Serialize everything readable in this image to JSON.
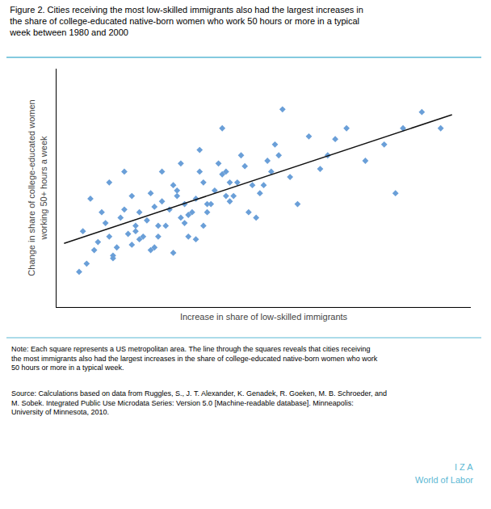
{
  "chart_data": {
    "type": "scatter",
    "title": "Figure 2. Cities receiving the most low-skilled immigrants also had the largest increases in\nthe share of college-educated native-born women who work 50 hours or more in a typical\nweek between 1980 and 2000",
    "xlabel": "Increase in share of low-skilled immigrants",
    "ylabel": "Change in share of college-educated women\nworking 50+ hours a week",
    "series": [
      {
        "type": "scatter",
        "marker": "diamond",
        "color": "#6a9fd8",
        "x": [
          0.005,
          0.008,
          0.01,
          0.012,
          0.006,
          0.009,
          0.007,
          0.011,
          0.013,
          0.004,
          0.015,
          0.017,
          0.014,
          0.016,
          0.019,
          0.018,
          0.02,
          0.013,
          0.012,
          0.016,
          0.022,
          0.024,
          0.021,
          0.023,
          0.025,
          0.02,
          0.018,
          0.026,
          0.019,
          0.023,
          0.028,
          0.03,
          0.027,
          0.029,
          0.031,
          0.025,
          0.032,
          0.026,
          0.024,
          0.033,
          0.035,
          0.037,
          0.034,
          0.036,
          0.038,
          0.032,
          0.033,
          0.03,
          0.029,
          0.031,
          0.04,
          0.042,
          0.039,
          0.041,
          0.043,
          0.038,
          0.037,
          0.044,
          0.035,
          0.036,
          0.046,
          0.048,
          0.045,
          0.047,
          0.05,
          0.044,
          0.049,
          0.043,
          0.042,
          0.051,
          0.055,
          0.057,
          0.053,
          0.056,
          0.06,
          0.052,
          0.058,
          0.054,
          0.062,
          0.065,
          0.07,
          0.072,
          0.068,
          0.075,
          0.08,
          0.085,
          0.09,
          0.095,
          0.1,
          0.088
        ],
        "values": [
          0.5,
          0.43,
          0.57,
          0.48,
          0.38,
          0.46,
          0.62,
          0.53,
          0.41,
          0.35,
          0.55,
          0.49,
          0.44,
          0.58,
          0.52,
          0.63,
          0.47,
          0.4,
          0.68,
          0.72,
          0.54,
          0.59,
          0.48,
          0.64,
          0.52,
          0.57,
          0.45,
          0.61,
          0.5,
          0.43,
          0.58,
          0.63,
          0.52,
          0.67,
          0.55,
          0.48,
          0.6,
          0.72,
          0.44,
          0.56,
          0.62,
          0.68,
          0.57,
          0.72,
          0.6,
          0.53,
          0.48,
          0.65,
          0.42,
          0.75,
          0.65,
          0.71,
          0.6,
          0.75,
          0.63,
          0.57,
          0.52,
          0.68,
          0.47,
          0.8,
          0.68,
          0.74,
          0.63,
          0.78,
          0.67,
          0.61,
          0.57,
          0.72,
          0.88,
          0.55,
          0.72,
          0.78,
          0.67,
          0.82,
          0.7,
          0.64,
          0.95,
          0.76,
          0.6,
          0.85,
          0.78,
          0.84,
          0.73,
          0.88,
          0.76,
          0.82,
          0.88,
          0.94,
          0.88,
          0.64
        ]
      },
      {
        "type": "line",
        "color": "#111111",
        "x": [
          0.0,
          0.103
        ],
        "values": [
          0.455,
          0.93
        ]
      }
    ],
    "xlim": [
      -0.002,
      0.108
    ],
    "ylim": [
      0.22,
      1.1
    ],
    "xticks": [],
    "yticks": [],
    "grid": false,
    "tick_labels": false,
    "annotations": [
      "Note: Each square represents a US metropolitan area. The line through the squares reveals that cities receiving the most immigrants also had the largest increases in the share of college-educated native-born women who work 50 hours or more in a typical week.",
      "Source: Calculations based on data from Ruggles, S., J. T. Alexander, K. Genadek, R. Goeken, M. B. Schroeder, and\nM. Sobek. Integrated Public Use Microdata Series: Version 5.0 [Machine-readable database]. Minneapolis:\nUniversity of Minnesota, 2010.",
      "I Z A",
      "World of Labor"
    ]
  }
}
